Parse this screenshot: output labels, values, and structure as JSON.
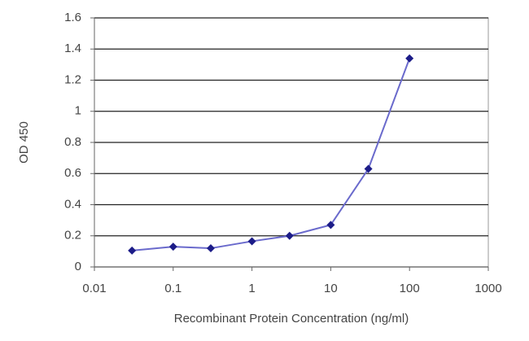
{
  "chart_data": {
    "type": "line",
    "x_label": "Recombinant Protein Concentration (ng/ml)",
    "y_label": "OD 450",
    "x": [
      0.03,
      0.1,
      0.3,
      1,
      3,
      10,
      30,
      100
    ],
    "series": [
      {
        "color": "#6a6acc",
        "marker_color": "#1c1c88",
        "values": [
          0.105,
          0.13,
          0.12,
          0.165,
          0.2,
          0.27,
          0.63,
          1.34
        ]
      }
    ],
    "xscale": "log",
    "xlim": [
      0.01,
      1000
    ],
    "xticks": [
      0.01,
      0.1,
      1,
      10,
      100,
      1000
    ],
    "ylim": [
      0,
      1.6
    ],
    "yticks": [
      0,
      0.2,
      0.4,
      0.6,
      0.8,
      1,
      1.2,
      1.4,
      1.6
    ],
    "grid": true
  }
}
